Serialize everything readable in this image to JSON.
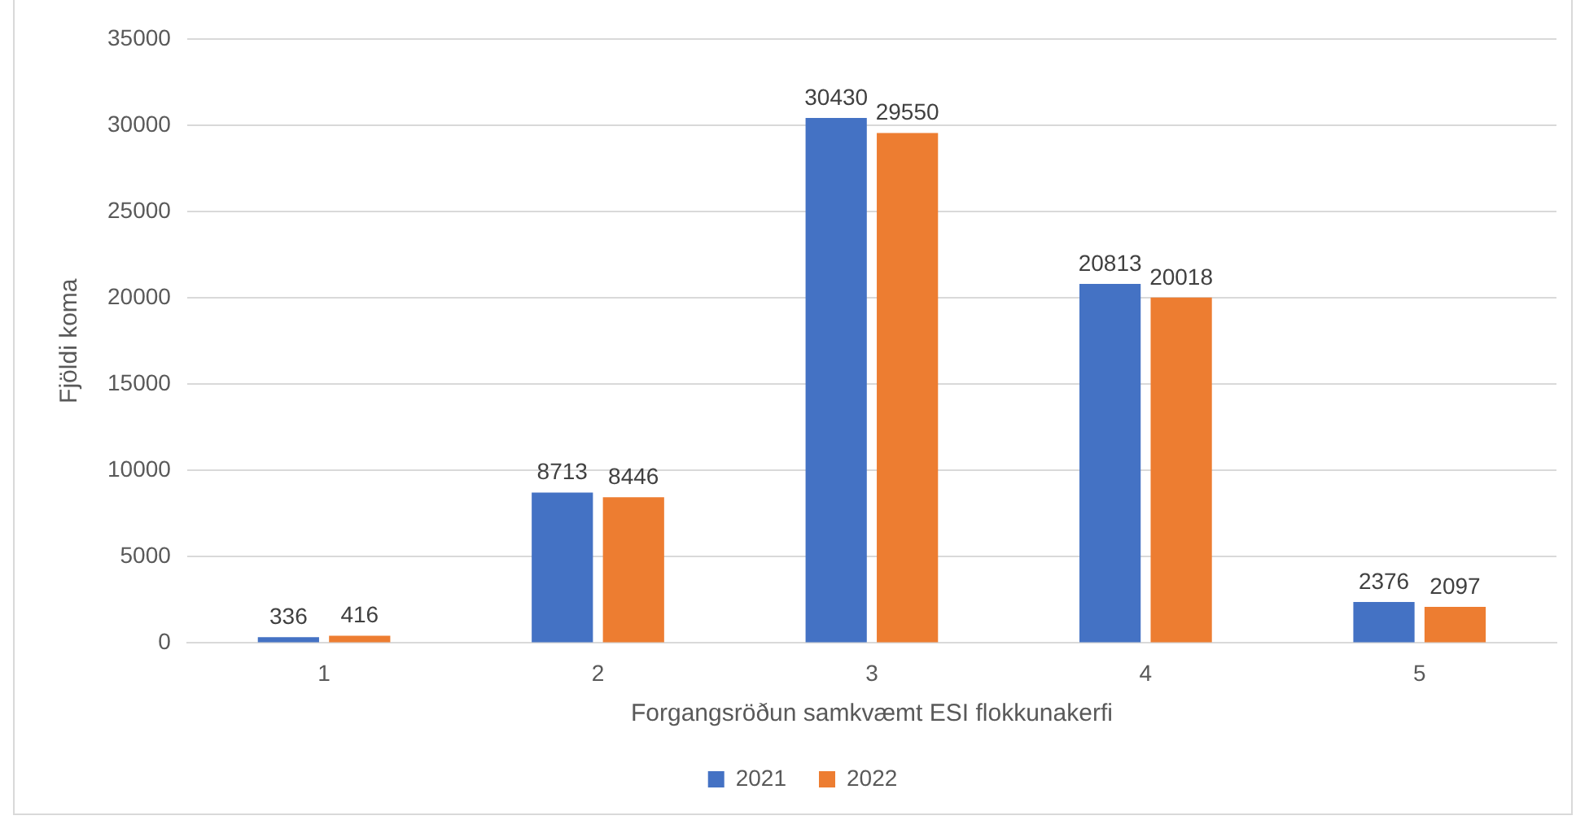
{
  "chart_data": {
    "type": "bar",
    "xlabel": "Forgangsröðun samkvæmt ESI flokkunakerfi",
    "ylabel": "Fjöldi koma",
    "categories": [
      "1",
      "2",
      "3",
      "4",
      "5"
    ],
    "series": [
      {
        "name": "2021",
        "color": "#4472c4",
        "values": [
          336,
          8713,
          30430,
          20813,
          2376
        ]
      },
      {
        "name": "2022",
        "color": "#ed7d31",
        "values": [
          416,
          8446,
          29550,
          20018,
          2097
        ]
      }
    ],
    "ylim": [
      0,
      35000
    ],
    "yticks": [
      0,
      5000,
      10000,
      15000,
      20000,
      25000,
      30000,
      35000
    ],
    "grid": "y",
    "legend": "bottom",
    "data_labels": true
  }
}
